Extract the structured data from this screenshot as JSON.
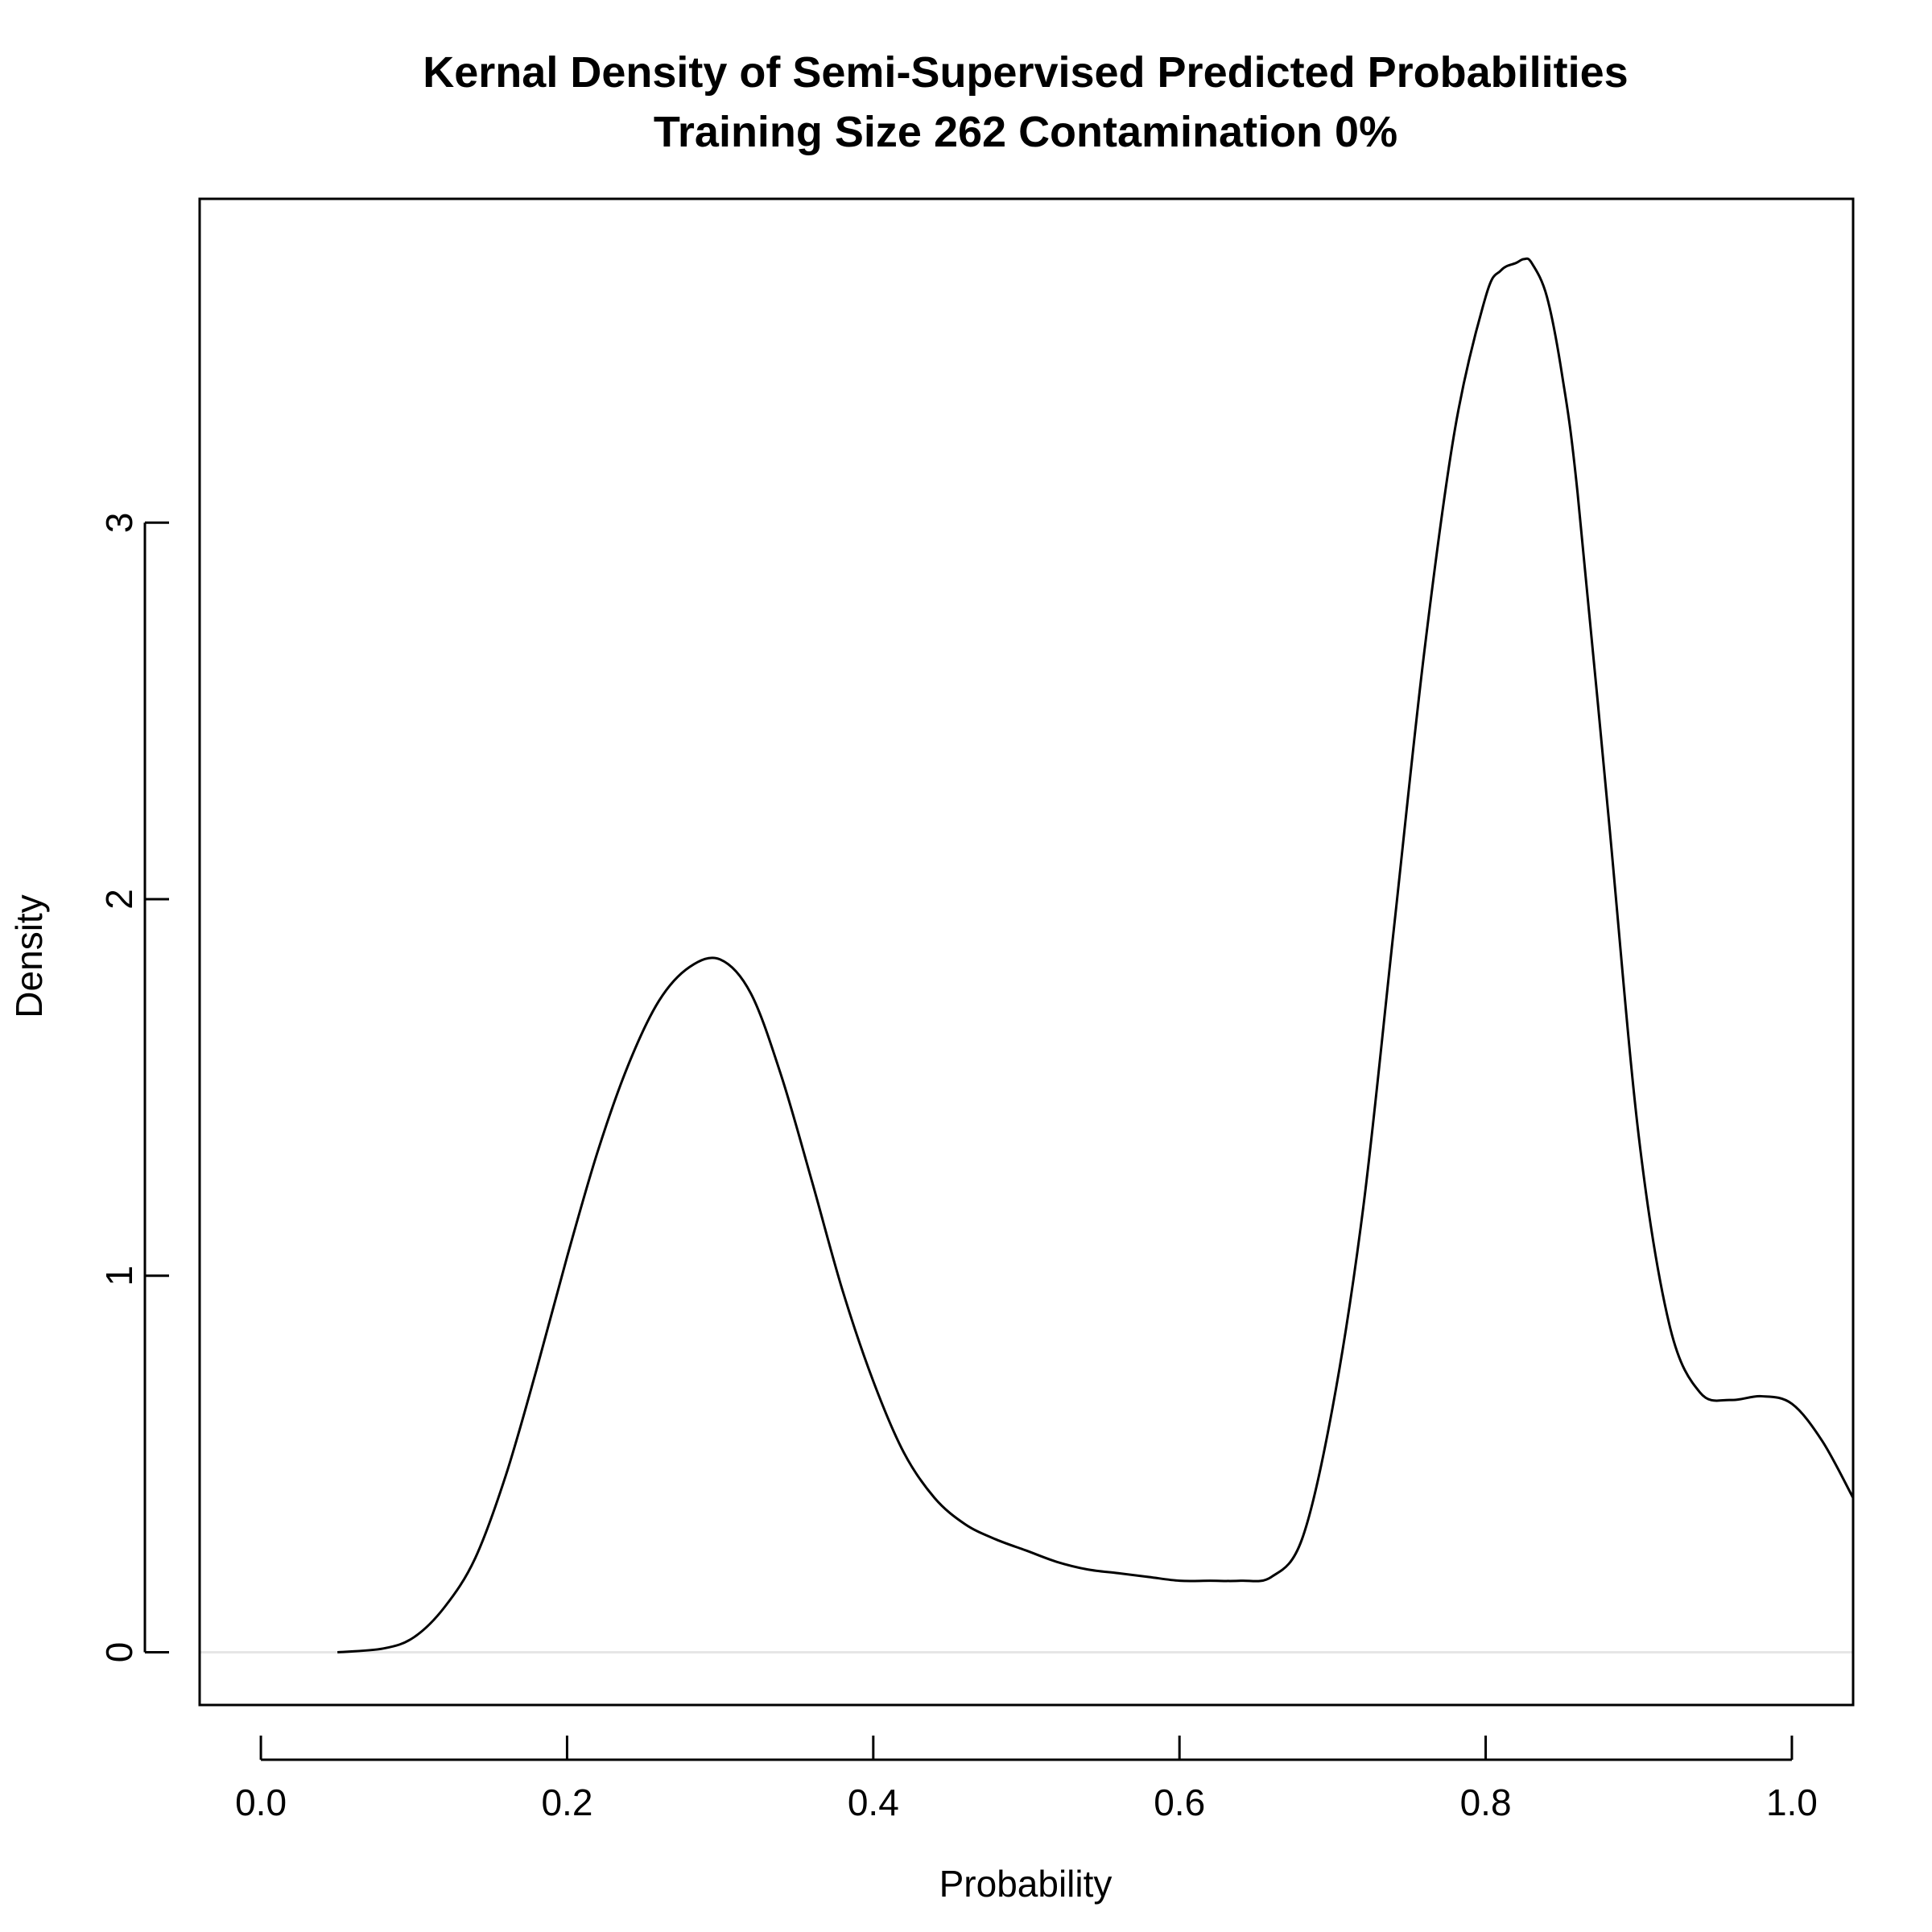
{
  "chart_data": {
    "type": "line",
    "title": "Kernal Density of Semi-Supervised Predicted Probabilities",
    "subtitle": "Training Size 262 Contamination 0%",
    "xlabel": "Probability",
    "ylabel": "Density",
    "xlim": [
      -0.04,
      1.04
    ],
    "ylim": [
      -0.14,
      3.86
    ],
    "x_ticks": [
      0.0,
      0.2,
      0.4,
      0.6,
      0.8,
      1.0
    ],
    "x_tick_labels": [
      "0.0",
      "0.2",
      "0.4",
      "0.6",
      "0.8",
      "1.0"
    ],
    "y_ticks": [
      0,
      1,
      2,
      3
    ],
    "y_tick_labels": [
      "0",
      "1",
      "2",
      "3"
    ],
    "zero_line": 0,
    "grid": false,
    "legend": "none",
    "line_color": "#000000",
    "zero_line_color": "#e6e6e6",
    "series": [
      {
        "x": [
          0.05,
          0.08,
          0.1,
          0.12,
          0.14,
          0.16,
          0.18,
          0.2,
          0.22,
          0.24,
          0.26,
          0.28,
          0.3,
          0.32,
          0.34,
          0.36,
          0.38,
          0.4,
          0.42,
          0.44,
          0.46,
          0.48,
          0.5,
          0.52,
          0.54,
          0.56,
          0.58,
          0.6,
          0.62,
          0.64,
          0.66,
          0.68,
          0.7,
          0.72,
          0.74,
          0.76,
          0.78,
          0.8,
          0.81,
          0.82,
          0.825,
          0.83,
          0.84,
          0.85,
          0.86,
          0.88,
          0.9,
          0.92,
          0.94,
          0.96,
          0.98,
          1.0,
          1.02,
          1.04
        ],
        "y": [
          0.0,
          0.01,
          0.04,
          0.12,
          0.25,
          0.47,
          0.75,
          1.05,
          1.33,
          1.56,
          1.73,
          1.82,
          1.84,
          1.75,
          1.53,
          1.25,
          0.96,
          0.72,
          0.53,
          0.41,
          0.34,
          0.3,
          0.27,
          0.24,
          0.22,
          0.21,
          0.2,
          0.19,
          0.19,
          0.19,
          0.2,
          0.3,
          0.65,
          1.18,
          1.92,
          2.66,
          3.25,
          3.6,
          3.67,
          3.69,
          3.7,
          3.69,
          3.6,
          3.39,
          3.08,
          2.23,
          1.37,
          0.87,
          0.69,
          0.67,
          0.68,
          0.66,
          0.56,
          0.41
        ]
      }
    ]
  }
}
